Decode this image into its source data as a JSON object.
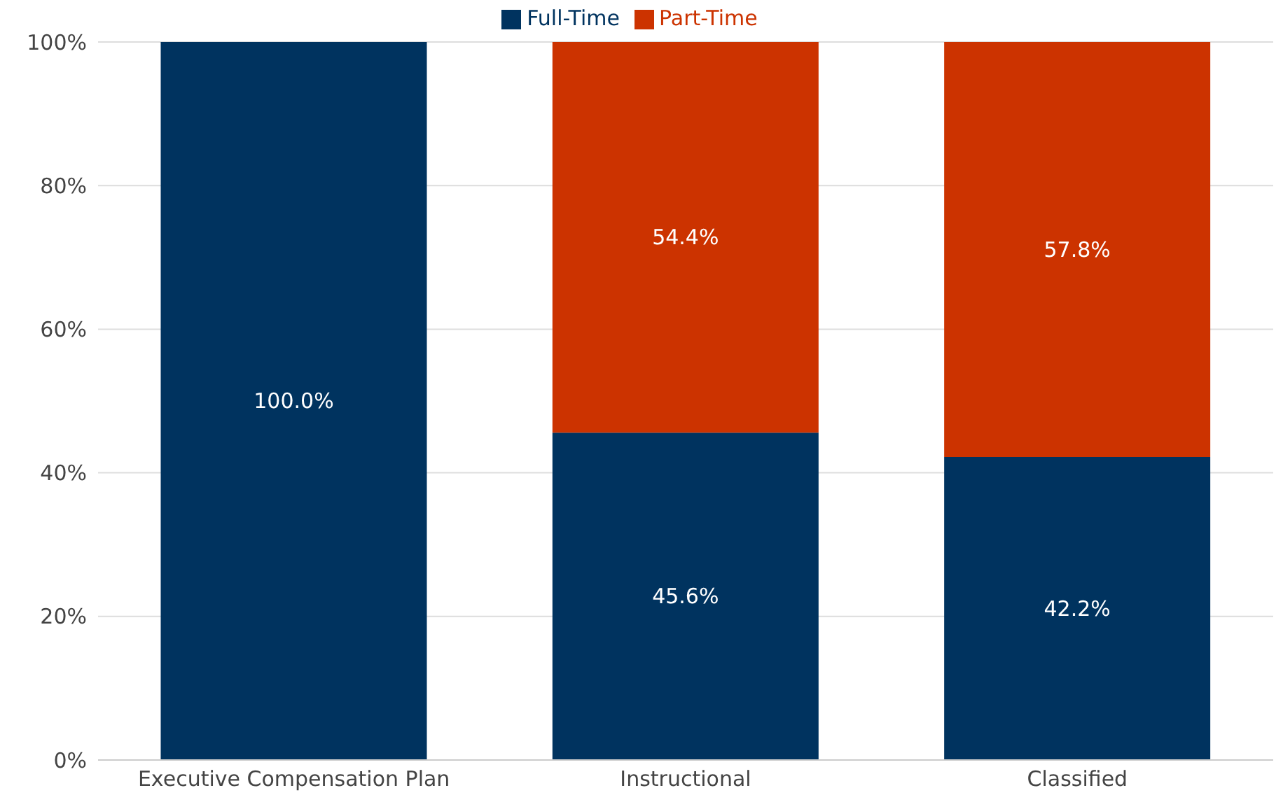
{
  "chart_data": {
    "type": "bar",
    "stacked": true,
    "categories": [
      "Executive Compensation Plan",
      "Instructional",
      "Classified"
    ],
    "series": [
      {
        "name": "Full-Time",
        "color": "#00335f",
        "values": [
          100,
          45.6,
          42.2
        ],
        "value_labels": [
          "100.0%",
          "45.6%",
          "42.2%"
        ]
      },
      {
        "name": "Part-Time",
        "color": "#cc3300",
        "values": [
          0,
          54.4,
          57.8
        ],
        "value_labels": [
          null,
          "54.4%",
          "57.8%"
        ]
      }
    ],
    "ylim": [
      0,
      100
    ],
    "yticks": [
      {
        "value": 0,
        "label": "0%"
      },
      {
        "value": 20,
        "label": "20%"
      },
      {
        "value": 40,
        "label": "40%"
      },
      {
        "value": 60,
        "label": "60%"
      },
      {
        "value": 80,
        "label": "80%"
      },
      {
        "value": 100,
        "label": "100%"
      }
    ],
    "grid": "y",
    "legend": "top"
  }
}
